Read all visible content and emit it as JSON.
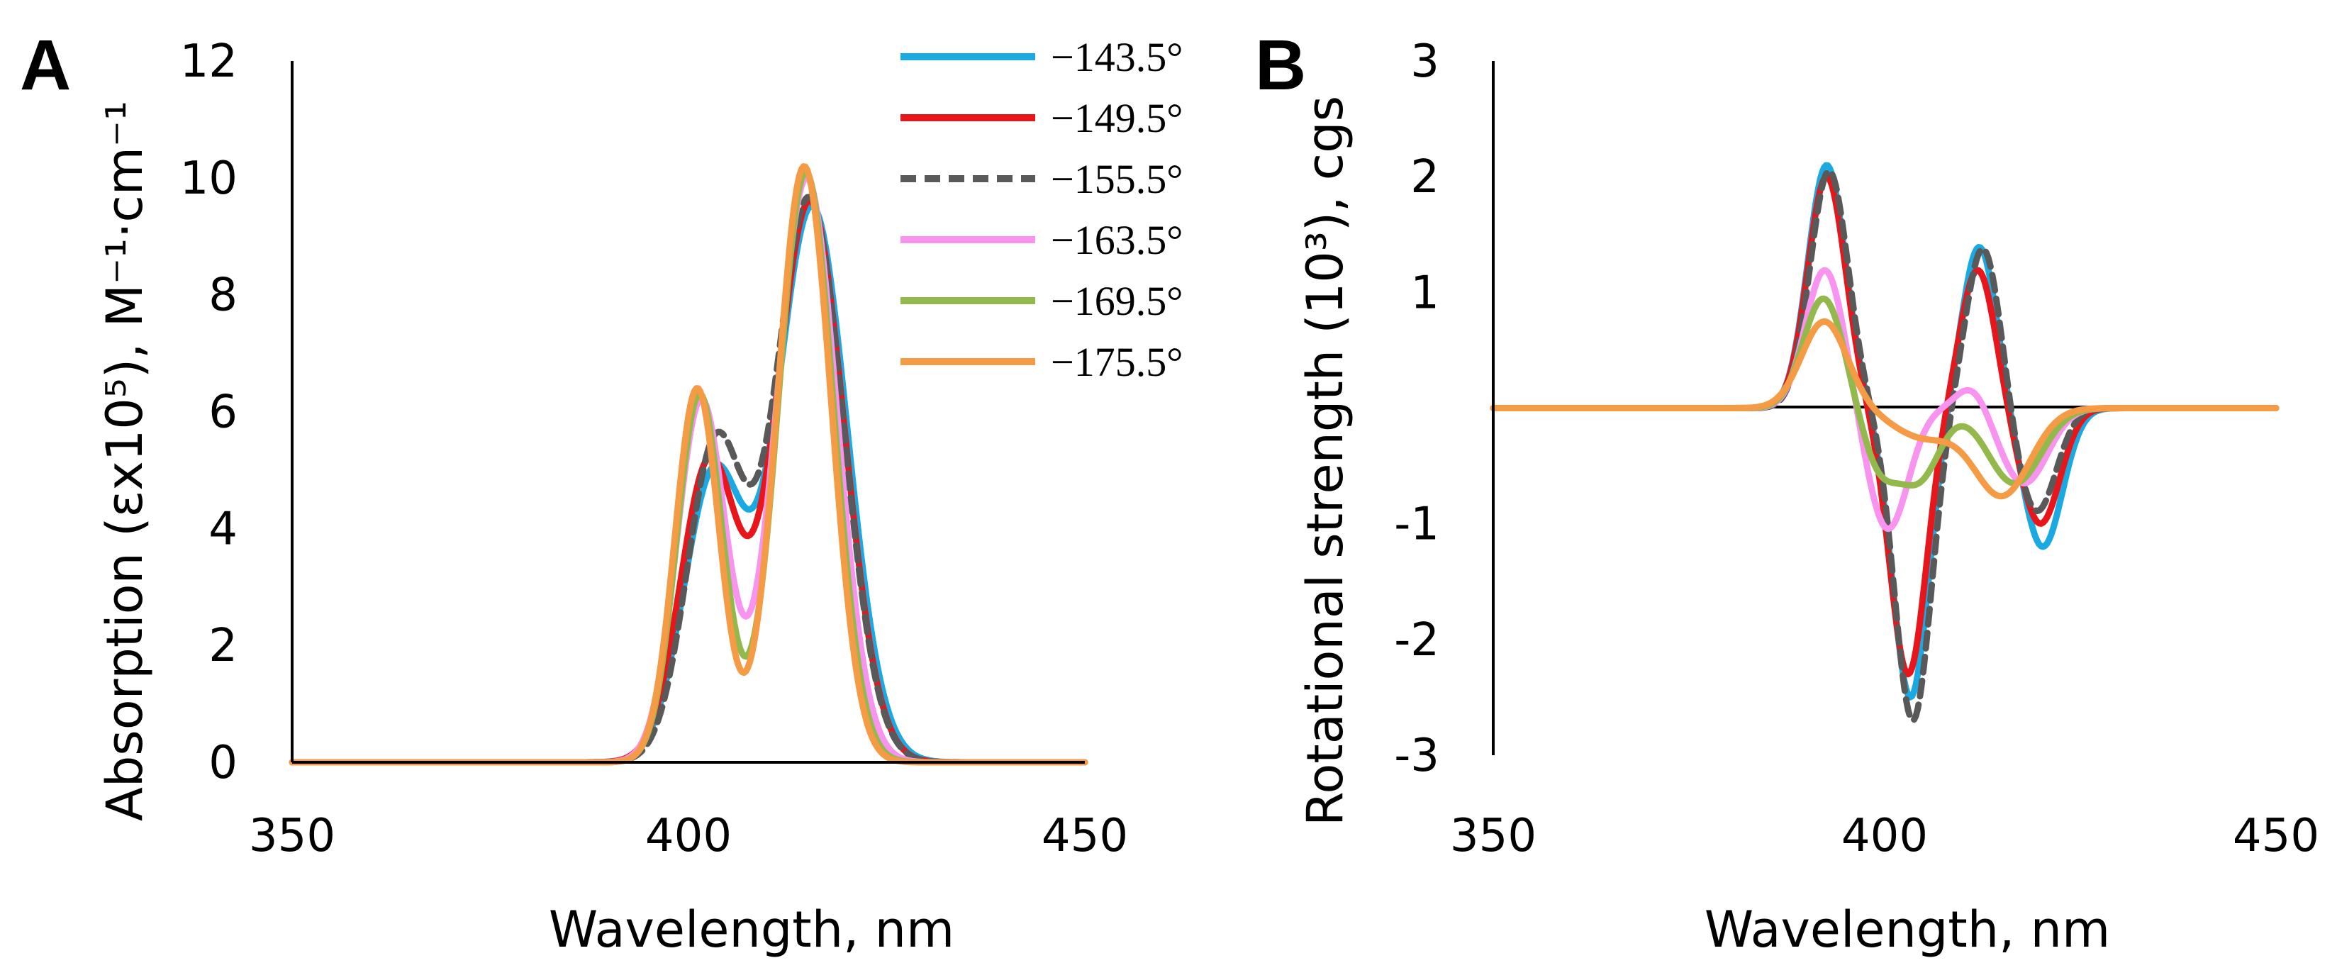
{
  "panels": {
    "a": {
      "letter": "A"
    },
    "b": {
      "letter": "B"
    }
  },
  "chart_data": [
    {
      "id": "a",
      "type": "line",
      "title": "",
      "xlabel": "Wavelength, nm",
      "ylabel": "Absorption (εx10⁵), M⁻¹·cm⁻¹",
      "xlim": [
        350,
        450
      ],
      "ylim": [
        0,
        12
      ],
      "xticks": [
        350,
        400,
        450
      ],
      "yticks": [
        0,
        2,
        4,
        6,
        8,
        10,
        12
      ],
      "xtick_labels": [
        "350",
        "400",
        "450"
      ],
      "ytick_labels": [
        "0",
        "2",
        "4",
        "6",
        "8",
        "10",
        "12"
      ],
      "legend_position": "top-right",
      "series": [
        {
          "name": "−143.5°",
          "color": "#1ba9e1",
          "dash": "solid",
          "peaks": [
            {
              "center": 415.6,
              "amp": 9.5,
              "width": 4.4
            },
            {
              "center": 403.2,
              "amp": 4.9,
              "width": 3.8
            }
          ]
        },
        {
          "name": "−149.5°",
          "color": "#e8161b",
          "dash": "solid",
          "peaks": [
            {
              "center": 415.3,
              "amp": 9.6,
              "width": 4.3
            },
            {
              "center": 402.6,
              "amp": 5.1,
              "width": 3.6
            }
          ]
        },
        {
          "name": "−155.5°",
          "color": "#595959",
          "dash": "dashed",
          "peaks": [
            {
              "center": 415.2,
              "amp": 9.65,
              "width": 4.3
            },
            {
              "center": 403.4,
              "amp": 5.4,
              "width": 3.6
            }
          ]
        },
        {
          "name": "−163.5°",
          "color": "#f993f0",
          "dash": "solid",
          "peaks": [
            {
              "center": 414.9,
              "amp": 10.0,
              "width": 3.8
            },
            {
              "center": 401.6,
              "amp": 6.2,
              "width": 3.1
            }
          ]
        },
        {
          "name": "−169.5°",
          "color": "#93b94d",
          "dash": "solid",
          "peaks": [
            {
              "center": 414.8,
              "amp": 10.1,
              "width": 3.5
            },
            {
              "center": 401.4,
              "amp": 6.3,
              "width": 2.9
            }
          ]
        },
        {
          "name": "−175.5°",
          "color": "#f59a45",
          "dash": "solid",
          "peaks": [
            {
              "center": 414.6,
              "amp": 10.2,
              "width": 3.4
            },
            {
              "center": 401.1,
              "amp": 6.4,
              "width": 2.8
            }
          ]
        }
      ]
    },
    {
      "id": "b",
      "type": "line",
      "title": "",
      "xlabel": "Wavelength, nm",
      "ylabel": "Rotational strength (10³), cgs",
      "xlim": [
        350,
        450
      ],
      "ylim": [
        -3,
        3
      ],
      "xticks": [
        350,
        400,
        450
      ],
      "yticks": [
        -3,
        -2,
        -1,
        0,
        1,
        2,
        3
      ],
      "xtick_labels": [
        "350",
        "400",
        "450"
      ],
      "ytick_labels": [
        "-3",
        "-2",
        "-1",
        "",
        "1",
        "2",
        "3"
      ],
      "legend_position": "shared",
      "series": [
        {
          "name": "−143.5°",
          "color": "#1ba9e1",
          "dash": "solid",
          "peaks": [
            {
              "center": 392.6,
              "amp": 2.1,
              "width": 2.4
            },
            {
              "center": 403.3,
              "amp": -2.5,
              "width": 2.3
            },
            {
              "center": 412.1,
              "amp": 1.4,
              "width": 2.2
            },
            {
              "center": 420.2,
              "amp": -1.2,
              "width": 2.5
            }
          ]
        },
        {
          "name": "−149.5°",
          "color": "#e8161b",
          "dash": "solid",
          "peaks": [
            {
              "center": 392.6,
              "amp": 2.0,
              "width": 2.4
            },
            {
              "center": 403.0,
              "amp": -2.3,
              "width": 2.3
            },
            {
              "center": 411.9,
              "amp": 1.2,
              "width": 2.2
            },
            {
              "center": 419.9,
              "amp": -1.0,
              "width": 2.5
            }
          ]
        },
        {
          "name": "−155.5°",
          "color": "#595959",
          "dash": "dashed",
          "peaks": [
            {
              "center": 392.9,
              "amp": 2.05,
              "width": 2.4
            },
            {
              "center": 403.6,
              "amp": -2.7,
              "width": 2.3
            },
            {
              "center": 412.6,
              "amp": 1.4,
              "width": 2.2
            },
            {
              "center": 419.4,
              "amp": -0.9,
              "width": 2.5
            }
          ]
        },
        {
          "name": "−163.5°",
          "color": "#f993f0",
          "dash": "solid",
          "peaks": [
            {
              "center": 392.4,
              "amp": 1.2,
              "width": 2.5
            },
            {
              "center": 400.4,
              "amp": -1.05,
              "width": 2.6
            },
            {
              "center": 411.2,
              "amp": 0.2,
              "width": 2.0
            },
            {
              "center": 417.8,
              "amp": -0.65,
              "width": 3.0
            }
          ]
        },
        {
          "name": "−169.5°",
          "color": "#93b94d",
          "dash": "solid",
          "peaks": [
            {
              "center": 392.2,
              "amp": 0.95,
              "width": 2.6
            },
            {
              "center": 399.4,
              "amp": -0.5,
              "width": 2.3
            },
            {
              "center": 404.4,
              "amp": -0.6,
              "width": 2.6
            },
            {
              "center": 416.6,
              "amp": -0.65,
              "width": 3.4
            }
          ]
        },
        {
          "name": "−175.5°",
          "color": "#f59a45",
          "dash": "solid",
          "peaks": [
            {
              "center": 392.3,
              "amp": 0.75,
              "width": 2.9
            },
            {
              "center": 405.0,
              "amp": -0.25,
              "width": 4.0
            },
            {
              "center": 415.0,
              "amp": -0.75,
              "width": 3.6
            }
          ]
        }
      ]
    }
  ]
}
